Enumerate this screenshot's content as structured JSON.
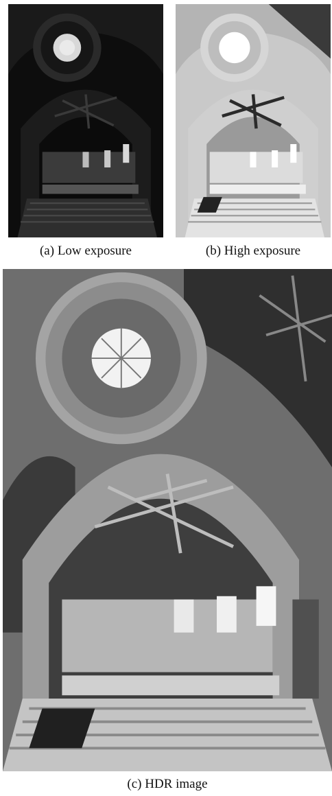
{
  "figure": {
    "panels": [
      {
        "id": "a",
        "caption": "(a) Low exposure",
        "image": "church-interior-low-exposure"
      },
      {
        "id": "b",
        "caption": "(b) High exposure",
        "image": "church-interior-high-exposure"
      },
      {
        "id": "c",
        "caption": "(c) HDR image",
        "image": "church-interior-hdr"
      }
    ]
  },
  "colors": {
    "background": "#ffffff",
    "caption_text": "#111111"
  }
}
